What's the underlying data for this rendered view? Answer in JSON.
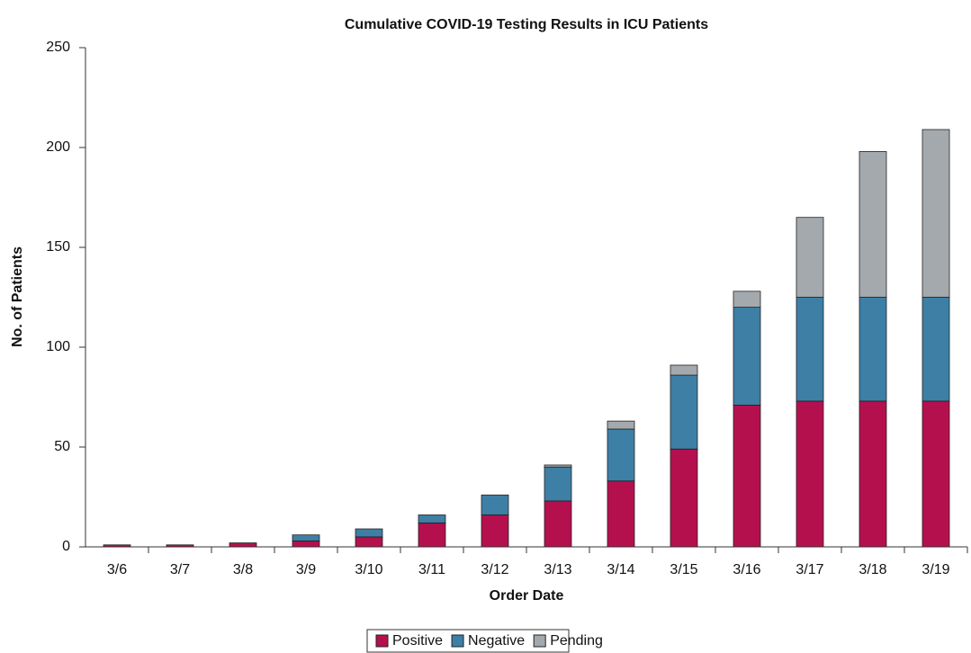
{
  "chart_data": {
    "type": "stacked_bar",
    "title": "Cumulative COVID-19 Testing Results in ICU Patients",
    "xlabel": "Order Date",
    "ylabel": "No. of Patients",
    "categories": [
      "3/6",
      "3/7",
      "3/8",
      "3/9",
      "3/10",
      "3/11",
      "3/12",
      "3/13",
      "3/14",
      "3/15",
      "3/16",
      "3/17",
      "3/18",
      "3/19"
    ],
    "series": [
      {
        "name": "Positive",
        "color": "#b5104e",
        "values": [
          1,
          1,
          2,
          3,
          5,
          12,
          16,
          23,
          33,
          49,
          71,
          73,
          73,
          73
        ]
      },
      {
        "name": "Negative",
        "color": "#3e7fa6",
        "values": [
          0,
          0,
          0,
          3,
          4,
          4,
          10,
          17,
          26,
          37,
          49,
          52,
          52,
          52
        ]
      },
      {
        "name": "Pending",
        "color": "#a3a9ad",
        "values": [
          0,
          0,
          0,
          0,
          0,
          0,
          0,
          1,
          4,
          5,
          8,
          40,
          73,
          84
        ]
      }
    ],
    "ylim": [
      0,
      250
    ],
    "yticks": [
      0,
      50,
      100,
      150,
      200,
      250
    ],
    "grid": false,
    "legend": "bottom"
  }
}
